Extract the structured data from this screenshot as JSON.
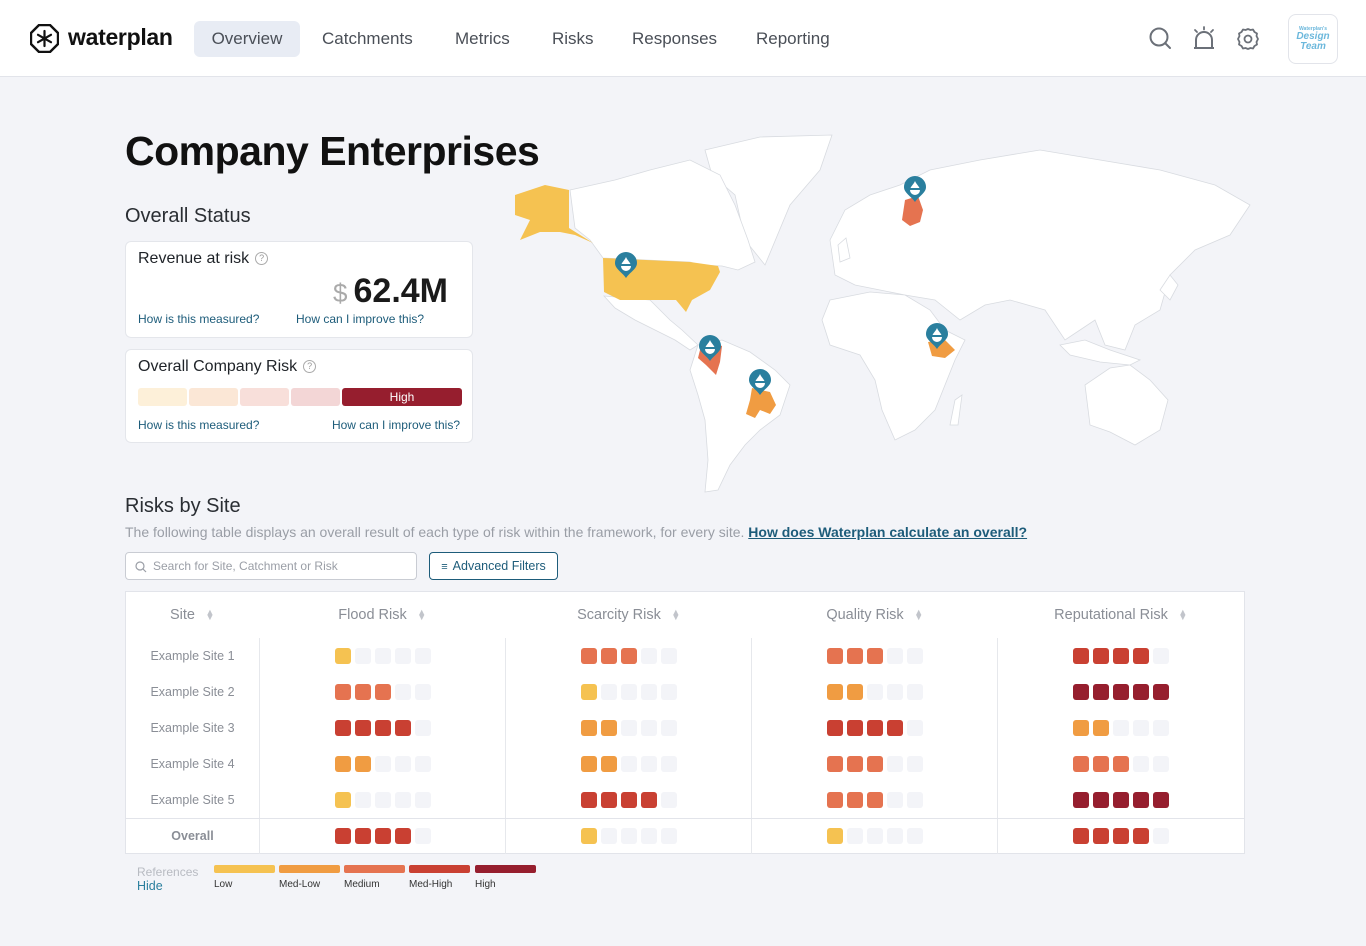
{
  "header": {
    "logo": "waterplan",
    "nav": [
      "Overview",
      "Catchments",
      "Metrics",
      "Risks",
      "Responses",
      "Reporting"
    ],
    "active_nav": "Overview",
    "avatar": {
      "line1": "Waterplan's",
      "line2": "Design",
      "line3": "Team"
    }
  },
  "page_title": "Company Enterprises",
  "overall_status": {
    "title": "Overall Status",
    "revenue": {
      "title": "Revenue at risk",
      "currency": "$",
      "value": "62.4M",
      "link_measured": "How is this measured?",
      "link_improve": "How can I improve this?"
    },
    "company_risk": {
      "title": "Overall Company Risk",
      "level": "High",
      "level_index": 5,
      "link_measured": "How is this measured?",
      "link_improve": "How can I improve this?"
    }
  },
  "map": {
    "highlighted": [
      {
        "country": "United States",
        "level": 1
      },
      {
        "country": "Finland",
        "level": 3
      },
      {
        "country": "Colombia",
        "level": 3
      },
      {
        "country": "Brazil",
        "level": 2
      },
      {
        "country": "Ethiopia",
        "level": 2
      }
    ]
  },
  "risks": {
    "title": "Risks by Site",
    "description": "The following table displays an overall result of each type of risk within the framework, for every site.",
    "description_link": "How does Waterplan calculate an overall?",
    "search_placeholder": "Search for Site, Catchment or Risk",
    "filters_label": "Advanced Filters",
    "columns": [
      "Site",
      "Flood Risk",
      "Scarcity Risk",
      "Quality Risk",
      "Reputational Risk"
    ],
    "rows": [
      {
        "site": "Example Site 1",
        "levels": [
          1,
          3,
          3,
          4
        ]
      },
      {
        "site": "Example Site 2",
        "levels": [
          3,
          1,
          2,
          5
        ]
      },
      {
        "site": "Example Site 3",
        "levels": [
          4,
          2,
          4,
          2
        ]
      },
      {
        "site": "Example Site 4",
        "levels": [
          2,
          2,
          3,
          3
        ]
      },
      {
        "site": "Example Site 5",
        "levels": [
          1,
          4,
          3,
          5
        ]
      }
    ],
    "overall": {
      "site": "Overall",
      "levels": [
        4,
        1,
        1,
        4
      ]
    }
  },
  "legend": {
    "title": "References",
    "hide": "Hide",
    "levels": [
      {
        "label": "Low",
        "color": "#f5c251"
      },
      {
        "label": "Med-Low",
        "color": "#f09c42"
      },
      {
        "label": "Medium",
        "color": "#e57350"
      },
      {
        "label": "Med-High",
        "color": "#c94032"
      },
      {
        "label": "High",
        "color": "#961e2e"
      }
    ]
  },
  "colors": {
    "empty": "#f3f4f8",
    "accent": "#1d5c7a",
    "pin": "#2a7f9e",
    "light_levels": [
      "#fdf0d9",
      "#fbe7d6",
      "#f8dfda",
      "#f3d6d6"
    ]
  }
}
